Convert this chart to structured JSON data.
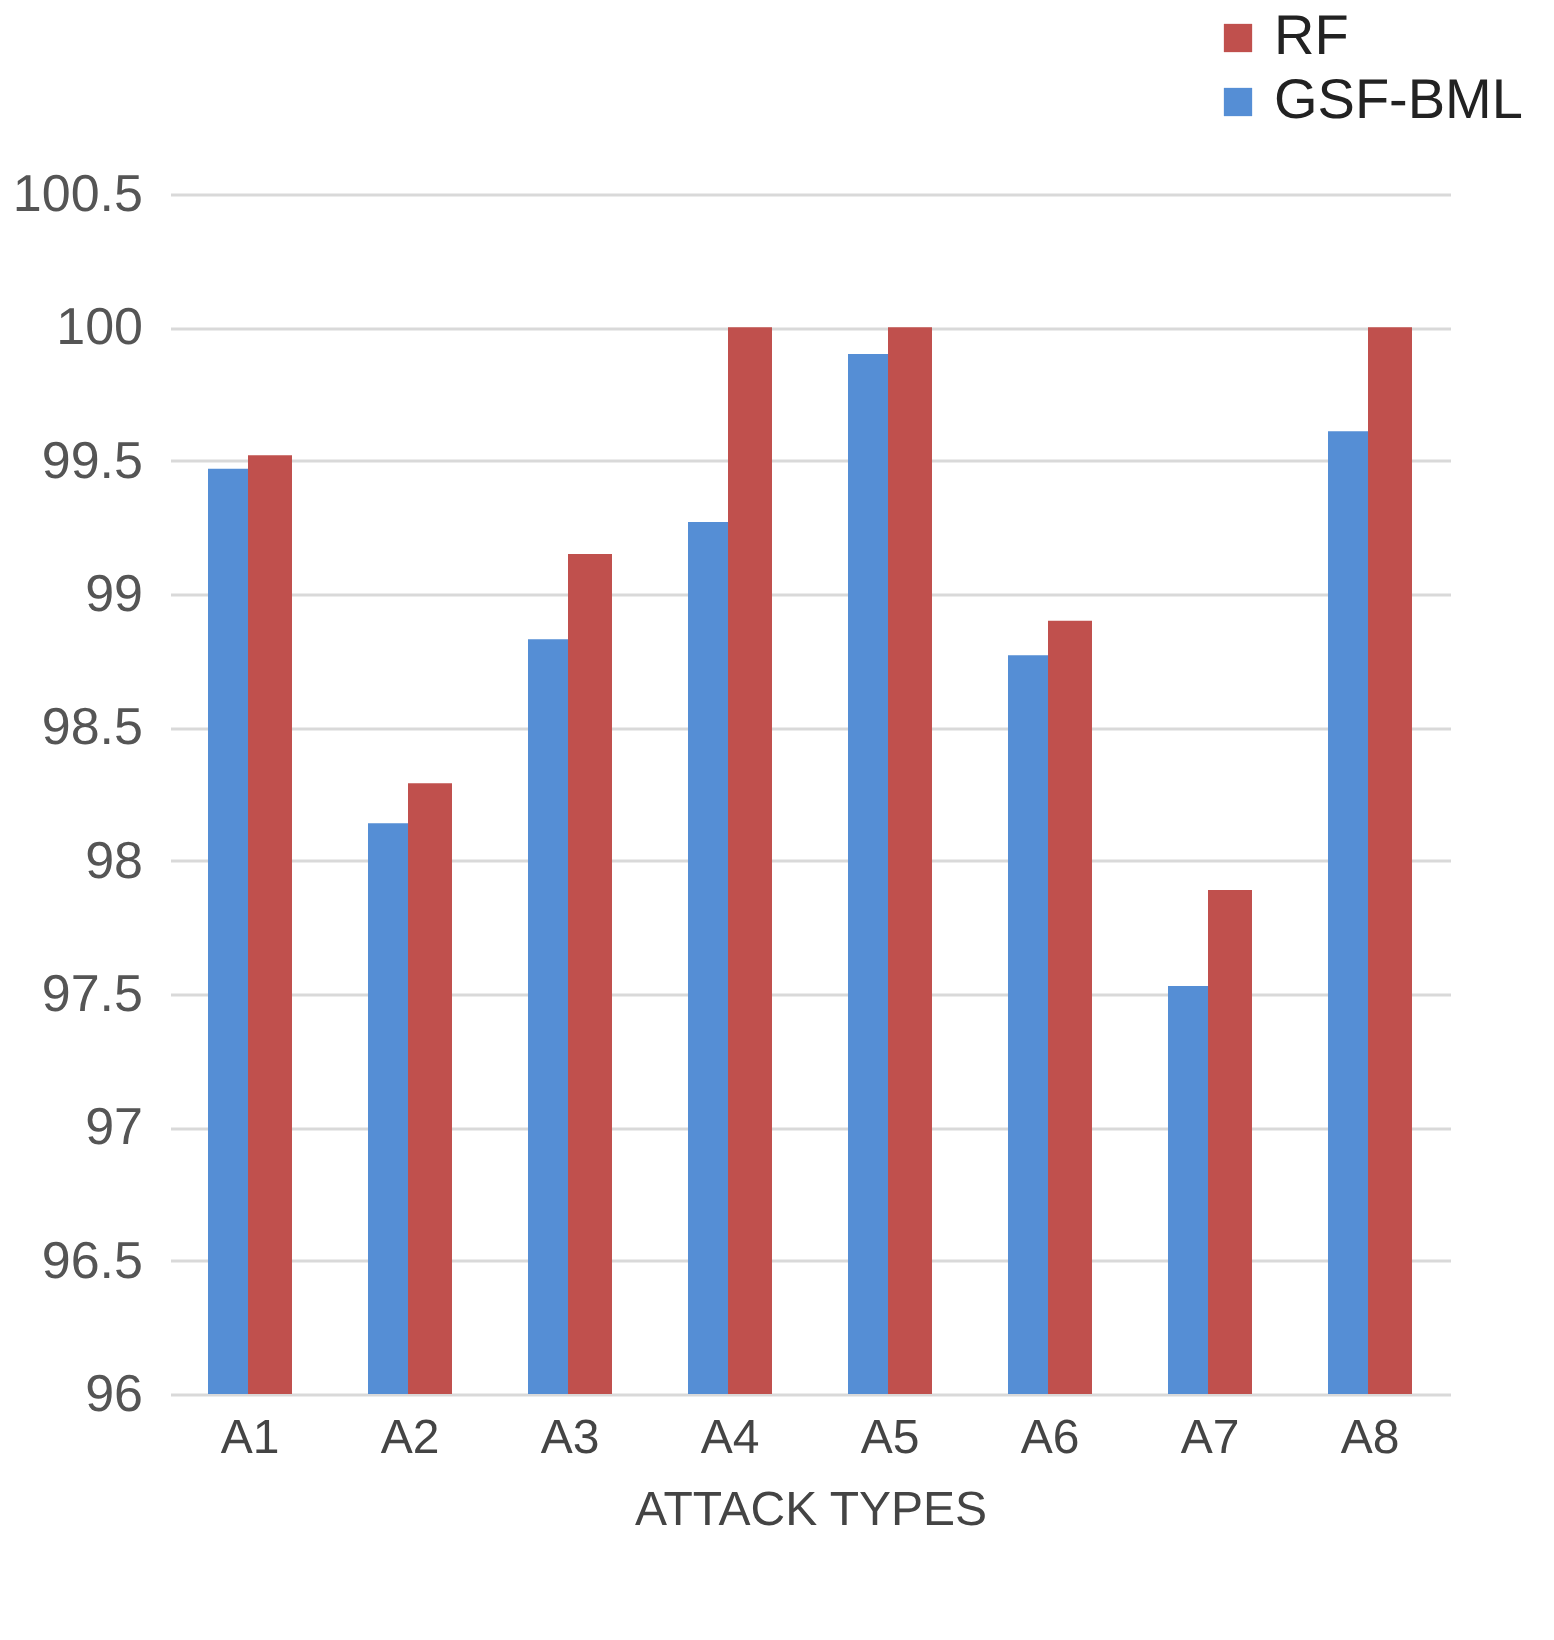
{
  "chart_data": {
    "type": "bar",
    "xlabel": "ATTACK TYPES",
    "categories": [
      "A1",
      "A2",
      "A3",
      "A4",
      "A5",
      "A6",
      "A7",
      "A8"
    ],
    "series": [
      {
        "name": "GSF-BML",
        "color": "#558ed5",
        "values": [
          99.47,
          98.14,
          98.83,
          99.27,
          99.9,
          98.77,
          97.53,
          99.61
        ]
      },
      {
        "name": "RF",
        "color": "#c0504d",
        "values": [
          99.52,
          98.29,
          99.15,
          100,
          100,
          98.9,
          97.89,
          100
        ]
      }
    ],
    "ylim": [
      96,
      100.5
    ],
    "yticks": [
      96,
      96.5,
      97,
      97.5,
      98,
      98.5,
      99,
      99.5,
      100,
      100.5
    ],
    "grid": "y",
    "legend": "top right"
  }
}
